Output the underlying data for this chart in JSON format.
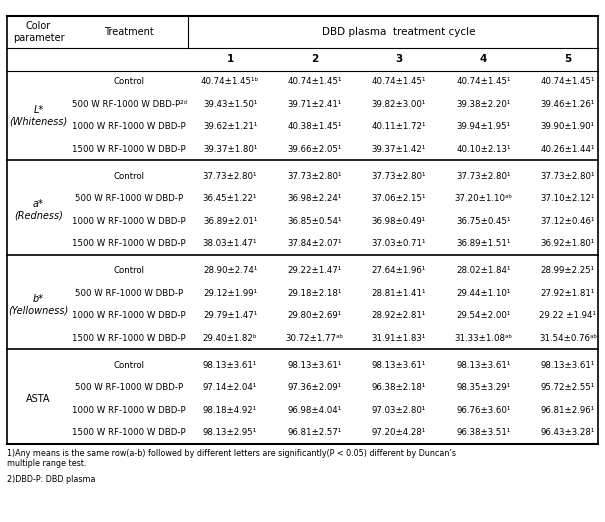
{
  "title": "DBD plasma treatment cycle",
  "col_param": "Color\nparameter",
  "col_treatment": "Treatment",
  "cycles": [
    "1",
    "2",
    "3",
    "4",
    "5"
  ],
  "sections": [
    {
      "param": "L*\n(Whiteness)",
      "param_italic": true,
      "rows": [
        {
          "treatment": "Control",
          "values": [
            "40.74±1.45¹ᵇ",
            "40.74±1.45¹",
            "40.74±1.45¹",
            "40.74±1.45¹",
            "40.74±1.45¹"
          ]
        },
        {
          "treatment": "500 W RF-1000 W DBD-P²ᵈ",
          "values": [
            "39.43±1.50¹",
            "39.71±2.41¹",
            "39.82±3.00¹",
            "39.38±2.20¹",
            "39.46±1.26¹"
          ]
        },
        {
          "treatment": "1000 W RF-1000 W DBD-P",
          "values": [
            "39.62±1.21¹",
            "40.38±1.45¹",
            "40.11±1.72¹",
            "39.94±1.95¹",
            "39.90±1.90¹"
          ]
        },
        {
          "treatment": "1500 W RF-1000 W DBD-P",
          "values": [
            "39.37±1.80¹",
            "39.66±2.05¹",
            "39.37±1.42¹",
            "40.10±2.13¹",
            "40.26±1.44¹"
          ]
        }
      ]
    },
    {
      "param": "a*\n(Redness)",
      "param_italic": true,
      "rows": [
        {
          "treatment": "Control",
          "values": [
            "37.73±2.80¹",
            "37.73±2.80¹",
            "37.73±2.80¹",
            "37.73±2.80¹",
            "37.73±2.80¹"
          ]
        },
        {
          "treatment": "500 W RF-1000 W DBD-P",
          "values": [
            "36.45±1.22¹",
            "36.98±2.24¹",
            "37.06±2.15¹",
            "37.20±1.10ᵃᵇ",
            "37.10±2.12¹"
          ]
        },
        {
          "treatment": "1000 W RF-1000 W DBD-P",
          "values": [
            "36.89±2.01¹",
            "36.85±0.54¹",
            "36.98±0.49¹",
            "36.75±0.45¹",
            "37.12±0.46¹"
          ]
        },
        {
          "treatment": "1500 W RF-1000 W DBD-P",
          "values": [
            "38.03±1.47¹",
            "37.84±2.07¹",
            "37.03±0.71¹",
            "36.89±1.51¹",
            "36.92±1.80¹"
          ]
        }
      ]
    },
    {
      "param": "b*\n(Yellowness)",
      "param_italic": true,
      "rows": [
        {
          "treatment": "Control",
          "values": [
            "28.90±2.74¹",
            "29.22±1.47¹",
            "27.64±1.96¹",
            "28.02±1.84¹",
            "28.99±2.25¹"
          ]
        },
        {
          "treatment": "500 W RF-1000 W DBD-P",
          "values": [
            "29.12±1.99¹",
            "29.18±2.18¹",
            "28.81±1.41¹",
            "29.44±1.10¹",
            "27.92±1.81¹"
          ]
        },
        {
          "treatment": "1000 W RF-1000 W DBD-P",
          "values": [
            "29.79±1.47¹",
            "29.80±2.69¹",
            "28.92±2.81¹",
            "29.54±2.00¹",
            "29.22 ±1.94¹"
          ]
        },
        {
          "treatment": "1500 W RF-1000 W DBD-P",
          "values": [
            "29.40±1.82ᵇ",
            "30.72±1.77ᵃᵇ",
            "31.91±1.83¹",
            "31.33±1.08ᵃᵇ",
            "31.54±0.76ᵃᵇ"
          ]
        }
      ]
    },
    {
      "param": "ASTA",
      "param_italic": false,
      "rows": [
        {
          "treatment": "Control",
          "values": [
            "98.13±3.61¹",
            "98.13±3.61¹",
            "98.13±3.61¹",
            "98.13±3.61¹",
            "98.13±3.61¹"
          ]
        },
        {
          "treatment": "500 W RF-1000 W DBD-P",
          "values": [
            "97.14±2.04¹",
            "97.36±2.09¹",
            "96.38±2.18¹",
            "98.35±3.29¹",
            "95.72±2.55¹"
          ]
        },
        {
          "treatment": "1000 W RF-1000 W DBD-P",
          "values": [
            "98.18±4.92¹",
            "96.98±4.04¹",
            "97.03±2.80¹",
            "96.76±3.60¹",
            "96.81±2.96¹"
          ]
        },
        {
          "treatment": "1500 W RF-1000 W DBD-P",
          "values": [
            "98.13±2.95¹",
            "96.81±2.57¹",
            "97.20±4.28¹",
            "96.38±3.51¹",
            "96.43±3.28¹"
          ]
        }
      ]
    }
  ],
  "footnote1": "1)Any means is the same row(a-b) followed by different letters are significantly(P < 0.05) different by Duncan’s\nmultiple range test.",
  "footnote2": "2)DBD-P: DBD plasma"
}
